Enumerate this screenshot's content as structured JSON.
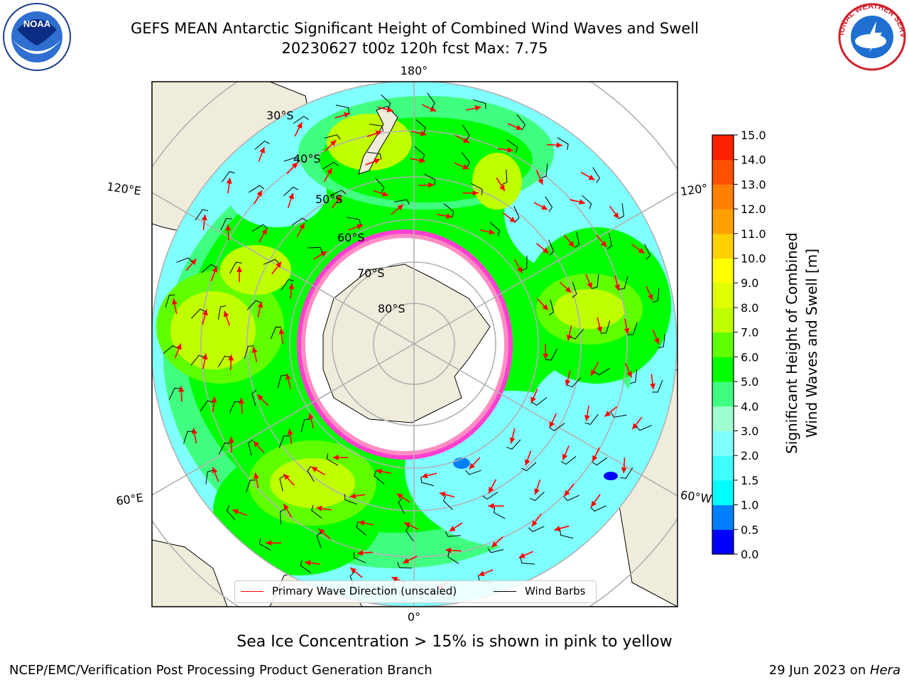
{
  "header": {
    "title_line1": "GEFS MEAN Antarctic Significant Height of Combined Wind Waves and Swell",
    "title_line2": "20230627 t00z 120h fcst   Max: 7.75",
    "left_logo": "NOAA",
    "right_logo": "NATIONAL WEATHER SERVICE"
  },
  "map": {
    "projection": "south-polar-stereographic",
    "longitude_labels": {
      "top": "180°",
      "bottom": "0°",
      "left_upper": "120°E",
      "left_lower": "60°E",
      "right_upper": "120°",
      "right_lower": "60°W"
    },
    "latitude_labels": [
      "30°S",
      "40°S",
      "50°S",
      "60°S",
      "70°S",
      "80°S"
    ],
    "colors": {
      "land": "#efecdc",
      "ice": "#ffffff",
      "sea_ice_edge": "#ff40d0",
      "wave_arrow": "#ff0000",
      "wind_barb": "#000000"
    }
  },
  "legend": {
    "primary_wave_direction": "Primary Wave Direction (unscaled)",
    "wind_barbs": "Wind Barbs"
  },
  "colorbar": {
    "label_line1": "Significant Height of Combined",
    "label_line2": "Wind Waves and Swell [m]",
    "ticks": [
      "0.0",
      "0.5",
      "1.0",
      "1.5",
      "2.0",
      "3.0",
      "4.0",
      "5.0",
      "6.0",
      "7.0",
      "8.0",
      "9.0",
      "10.0",
      "11.0",
      "12.0",
      "13.0",
      "14.0",
      "15.0"
    ],
    "colors": [
      "#0000ff",
      "#0080ff",
      "#00ffff",
      "#40ffff",
      "#80ffff",
      "#a0ffd0",
      "#40ff80",
      "#00ff00",
      "#60ff00",
      "#c0ff00",
      "#e0ff00",
      "#ffff00",
      "#ffd000",
      "#ffa000",
      "#ff8000",
      "#ff5000",
      "#ff2000"
    ]
  },
  "footer": {
    "note": "Sea Ice Concentration > 15% is shown in pink to yellow",
    "credit": "NCEP/EMC/Verification Post Processing Product Generation Branch",
    "date_prefix": "29 Jun 2023 on ",
    "date_machine": "Hera"
  }
}
